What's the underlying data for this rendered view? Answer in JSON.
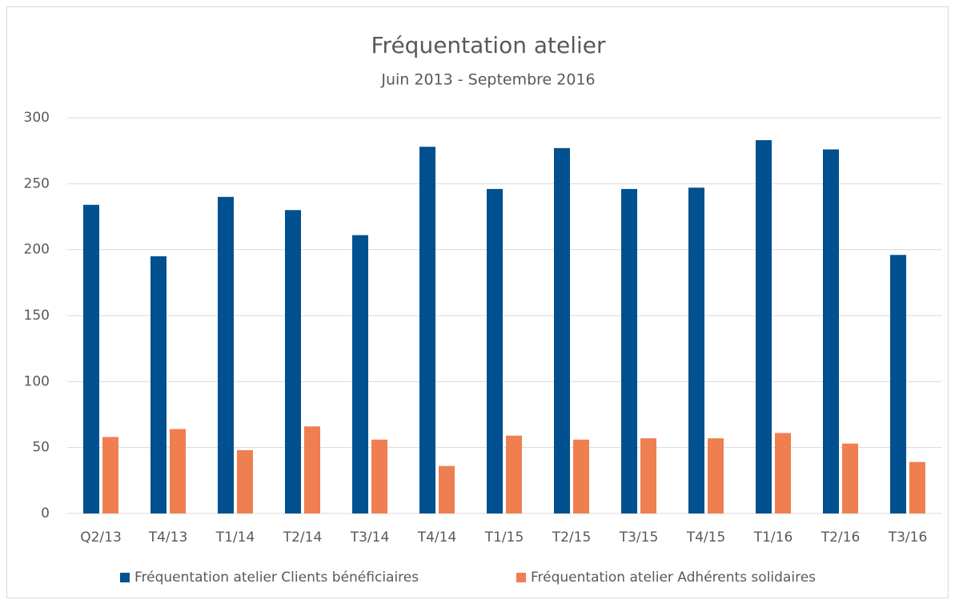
{
  "chart_data": {
    "type": "bar",
    "title": "Fréquentation atelier",
    "subtitle": "Juin 2013 - Septembre 2016",
    "categories": [
      "Q2/13",
      "T4/13",
      "T1/14",
      "T2/14",
      "T3/14",
      "T4/14",
      "T1/15",
      "T2/15",
      "T3/15",
      "T4/15",
      "T1/16",
      "T2/16",
      "T3/16"
    ],
    "series": [
      {
        "name": "Fréquentation atelier Clients bénéficiaires",
        "color": "#01508f",
        "values": [
          234,
          195,
          240,
          230,
          211,
          278,
          246,
          277,
          246,
          247,
          283,
          276,
          196
        ]
      },
      {
        "name": "Fréquentation atelier Adhérents solidaires",
        "color": "#ef7f50",
        "values": [
          58,
          64,
          48,
          66,
          56,
          36,
          59,
          56,
          57,
          57,
          61,
          53,
          39
        ]
      }
    ],
    "ylim": [
      0,
      300
    ],
    "yticks": [
      0,
      50,
      100,
      150,
      200,
      250,
      300
    ],
    "grid": true,
    "legend": "bottom"
  }
}
